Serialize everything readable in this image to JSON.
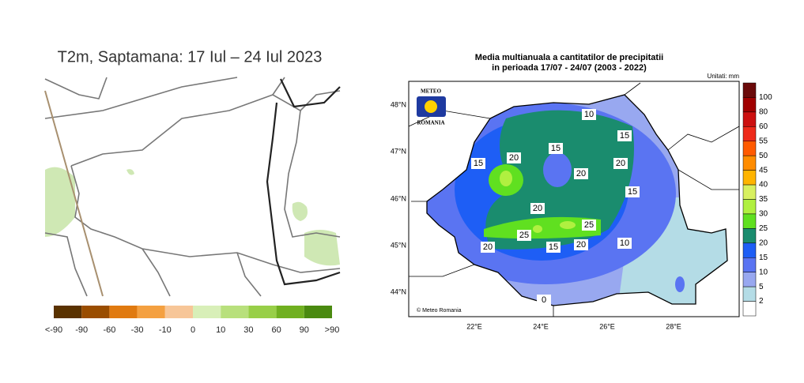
{
  "left_panel": {
    "title": "T2m, Saptamana: 17 Iul – 24 Iul 2023",
    "legend": {
      "labels": [
        "<-90",
        "-90",
        "-60",
        "-30",
        "-10",
        "0",
        "10",
        "30",
        "60",
        "90",
        ">90"
      ],
      "colors": [
        "#5a3200",
        "#9a4d00",
        "#e07a10",
        "#f4a040",
        "#f7c698",
        "#d8efb8",
        "#b8e07c",
        "#98cf48",
        "#70b020",
        "#4a8a10"
      ]
    }
  },
  "right_panel": {
    "title": [
      "Media multianuala a cantitatilor de precipitatii",
      "in perioada 17/07 - 24/07 (2003 - 2022)"
    ],
    "units": "Unitati: mm",
    "logo": {
      "top": "METEO",
      "bottom": "ROMANIA"
    },
    "credit": "© Meteo Romania",
    "lat_labels": [
      "48°N",
      "47°N",
      "46°N",
      "45°N",
      "44°N"
    ],
    "lon_labels": [
      "22°E",
      "24°E",
      "26°E",
      "28°E"
    ],
    "contour_labels": [
      "15",
      "20",
      "15",
      "20",
      "20",
      "20",
      "15",
      "10",
      "15",
      "25",
      "25",
      "20",
      "15",
      "20",
      "10",
      "0"
    ],
    "legend": {
      "labels": [
        "100",
        "80",
        "60",
        "55",
        "50",
        "45",
        "40",
        "35",
        "30",
        "25",
        "20",
        "15",
        "10",
        "5",
        "2"
      ],
      "colors": [
        "#6b0a0a",
        "#a00000",
        "#cc1010",
        "#ee2a1a",
        "#ff5a00",
        "#ff8c00",
        "#ffb400",
        "#d8f060",
        "#b0f040",
        "#60e020",
        "#1a8c6e",
        "#1e5ef5",
        "#5a74f2",
        "#98a8f0",
        "#b4dce6",
        "#ffffff"
      ]
    }
  }
}
